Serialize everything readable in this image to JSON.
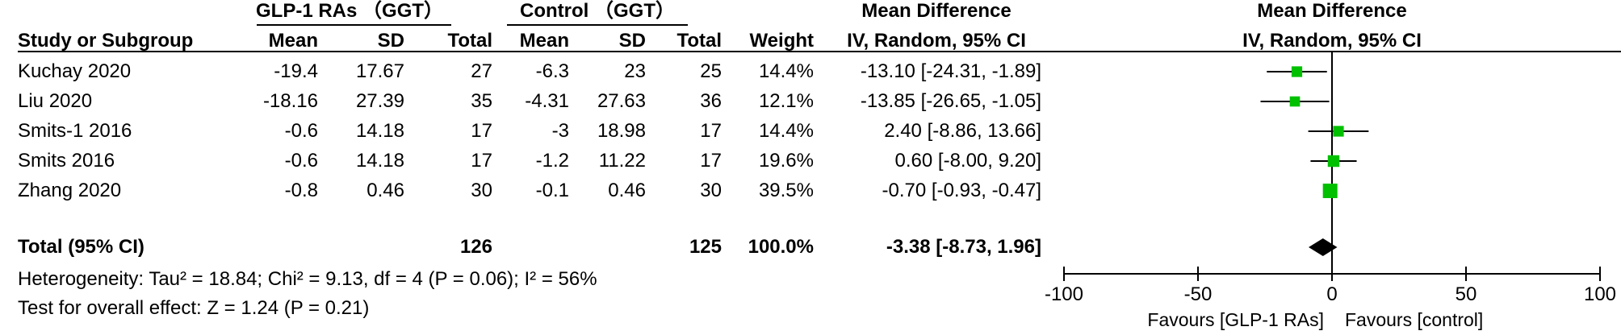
{
  "header": {
    "group1": "GLP-1 RAs （GGT）",
    "group2": "Control （GGT）",
    "col_study": "Study or Subgroup",
    "col_mean1": "Mean",
    "col_sd1": "SD",
    "col_total1": "Total",
    "col_mean2": "Mean",
    "col_sd2": "SD",
    "col_total2": "Total",
    "col_weight": "Weight",
    "md_title": "Mean Difference",
    "md_sub": "IV, Random, 95% CI",
    "plot_title": "Mean Difference",
    "plot_sub": "IV, Random, 95% CI"
  },
  "studies": [
    {
      "name": "Kuchay 2020",
      "mean1": "-19.4",
      "sd1": "17.67",
      "total1": "27",
      "mean2": "-6.3",
      "sd2": "23",
      "total2": "25",
      "weight": "14.4%",
      "ci": "-13.10 [-24.31, -1.89]"
    },
    {
      "name": "Liu 2020",
      "mean1": "-18.16",
      "sd1": "27.39",
      "total1": "35",
      "mean2": "-4.31",
      "sd2": "27.63",
      "total2": "36",
      "weight": "12.1%",
      "ci": "-13.85 [-26.65, -1.05]"
    },
    {
      "name": "Smits-1  2016",
      "mean1": "-0.6",
      "sd1": "14.18",
      "total1": "17",
      "mean2": "-3",
      "sd2": "18.98",
      "total2": "17",
      "weight": "14.4%",
      "ci": "2.40 [-8.86, 13.66]"
    },
    {
      "name": "Smits 2016",
      "mean1": "-0.6",
      "sd1": "14.18",
      "total1": "17",
      "mean2": "-1.2",
      "sd2": "11.22",
      "total2": "17",
      "weight": "19.6%",
      "ci": "0.60 [-8.00, 9.20]"
    },
    {
      "name": "Zhang 2020",
      "mean1": "-0.8",
      "sd1": "0.46",
      "total1": "30",
      "mean2": "-0.1",
      "sd2": "0.46",
      "total2": "30",
      "weight": "39.5%",
      "ci": "-0.70 [-0.93, -0.47]"
    }
  ],
  "total": {
    "label": "Total (95% CI)",
    "total1": "126",
    "total2": "125",
    "weight": "100.0%",
    "ci": "-3.38 [-8.73, 1.96]"
  },
  "footer": {
    "heterogeneity": "Heterogeneity: Tau² = 18.84; Chi² = 9.13, df = 4 (P = 0.06); I² = 56%",
    "overall": "Test for overall effect: Z = 1.24 (P = 0.21)"
  },
  "axis": {
    "ticks": [
      "-100",
      "-50",
      "0",
      "50",
      "100"
    ],
    "favours_left": "Favours [GLP-1 RAs]",
    "favours_right": "Favours [control]"
  },
  "colors": {
    "study_marker": "#00c000",
    "summary_marker": "#000000",
    "lines": "#000000"
  },
  "chart_data": {
    "type": "forest",
    "xlim": [
      -100,
      100
    ],
    "ticks": [
      -100,
      -50,
      0,
      50,
      100
    ],
    "studies": [
      {
        "name": "Kuchay 2020",
        "md": -13.1,
        "lo": -24.31,
        "hi": -1.89,
        "weight": 14.4
      },
      {
        "name": "Liu 2020",
        "md": -13.85,
        "lo": -26.65,
        "hi": -1.05,
        "weight": 12.1
      },
      {
        "name": "Smits-1  2016",
        "md": 2.4,
        "lo": -8.86,
        "hi": 13.66,
        "weight": 14.4
      },
      {
        "name": "Smits 2016",
        "md": 0.6,
        "lo": -8.0,
        "hi": 9.2,
        "weight": 19.6
      },
      {
        "name": "Zhang 2020",
        "md": -0.7,
        "lo": -0.93,
        "hi": -0.47,
        "weight": 39.5
      }
    ],
    "summary": {
      "md": -3.38,
      "lo": -8.73,
      "hi": 1.96
    }
  }
}
